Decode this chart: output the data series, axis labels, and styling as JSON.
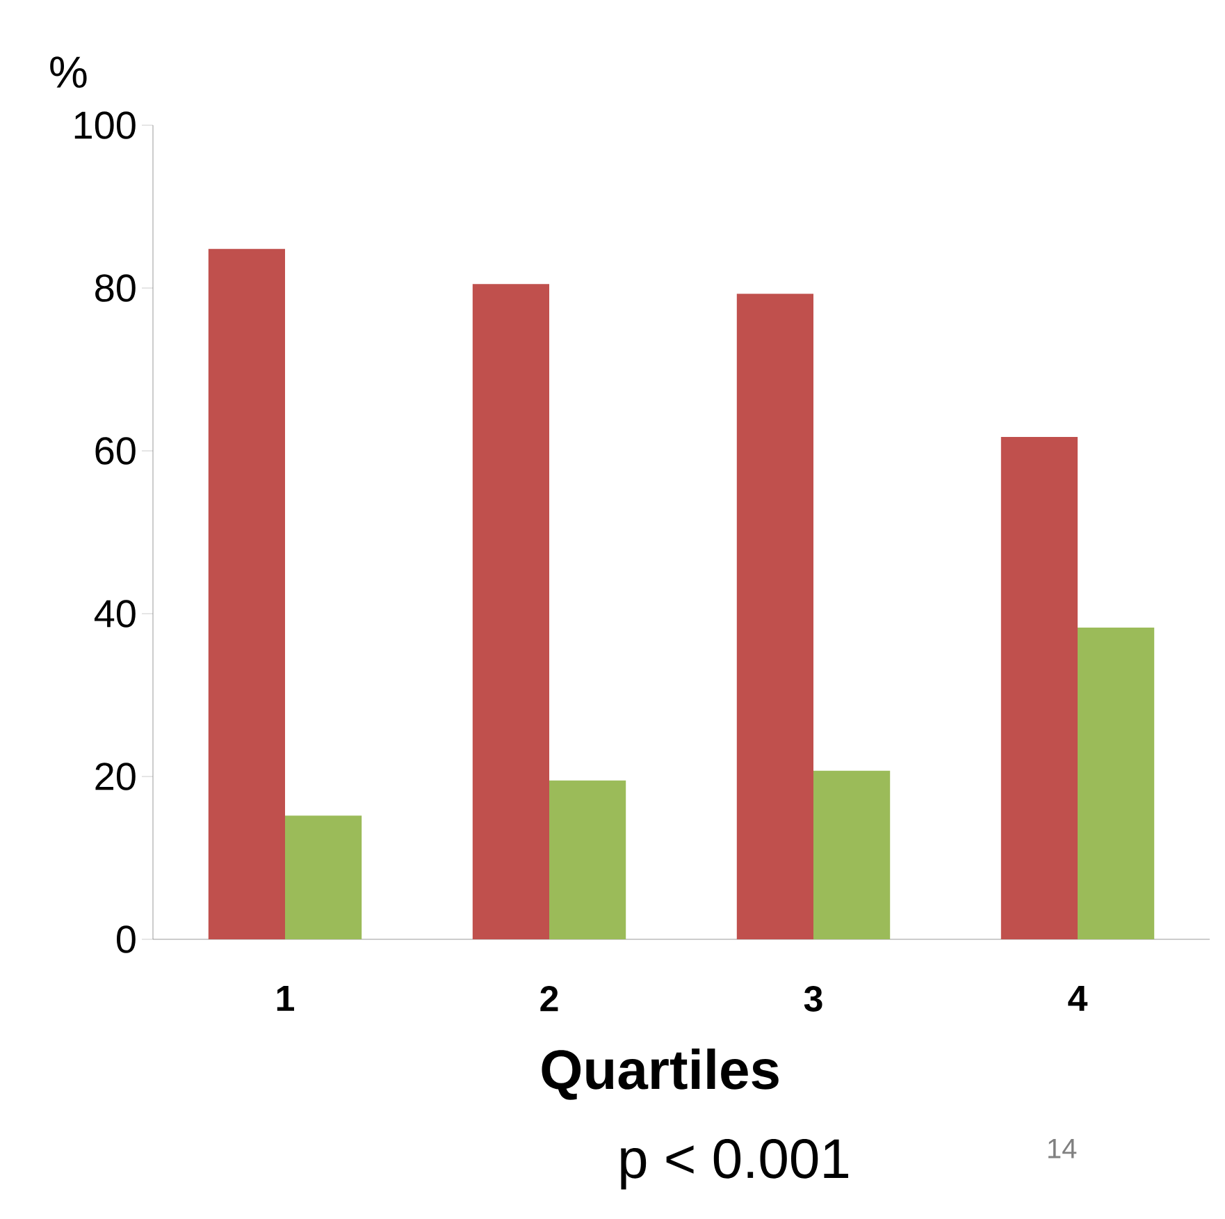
{
  "chart_data": {
    "type": "bar",
    "ylabel": "%",
    "xlabel": "Quartiles",
    "categories": [
      "1",
      "2",
      "3",
      "4"
    ],
    "series": [
      {
        "color": "#c0504d",
        "values": [
          84.8,
          80.5,
          79.3,
          61.7
        ]
      },
      {
        "color": "#9bbb59",
        "values": [
          15.2,
          19.5,
          20.7,
          38.3
        ]
      }
    ],
    "ylim": [
      0,
      100
    ],
    "yticks": [
      0,
      20,
      40,
      60,
      80,
      100
    ],
    "annotations": [
      "p < 0.001",
      "14"
    ]
  }
}
